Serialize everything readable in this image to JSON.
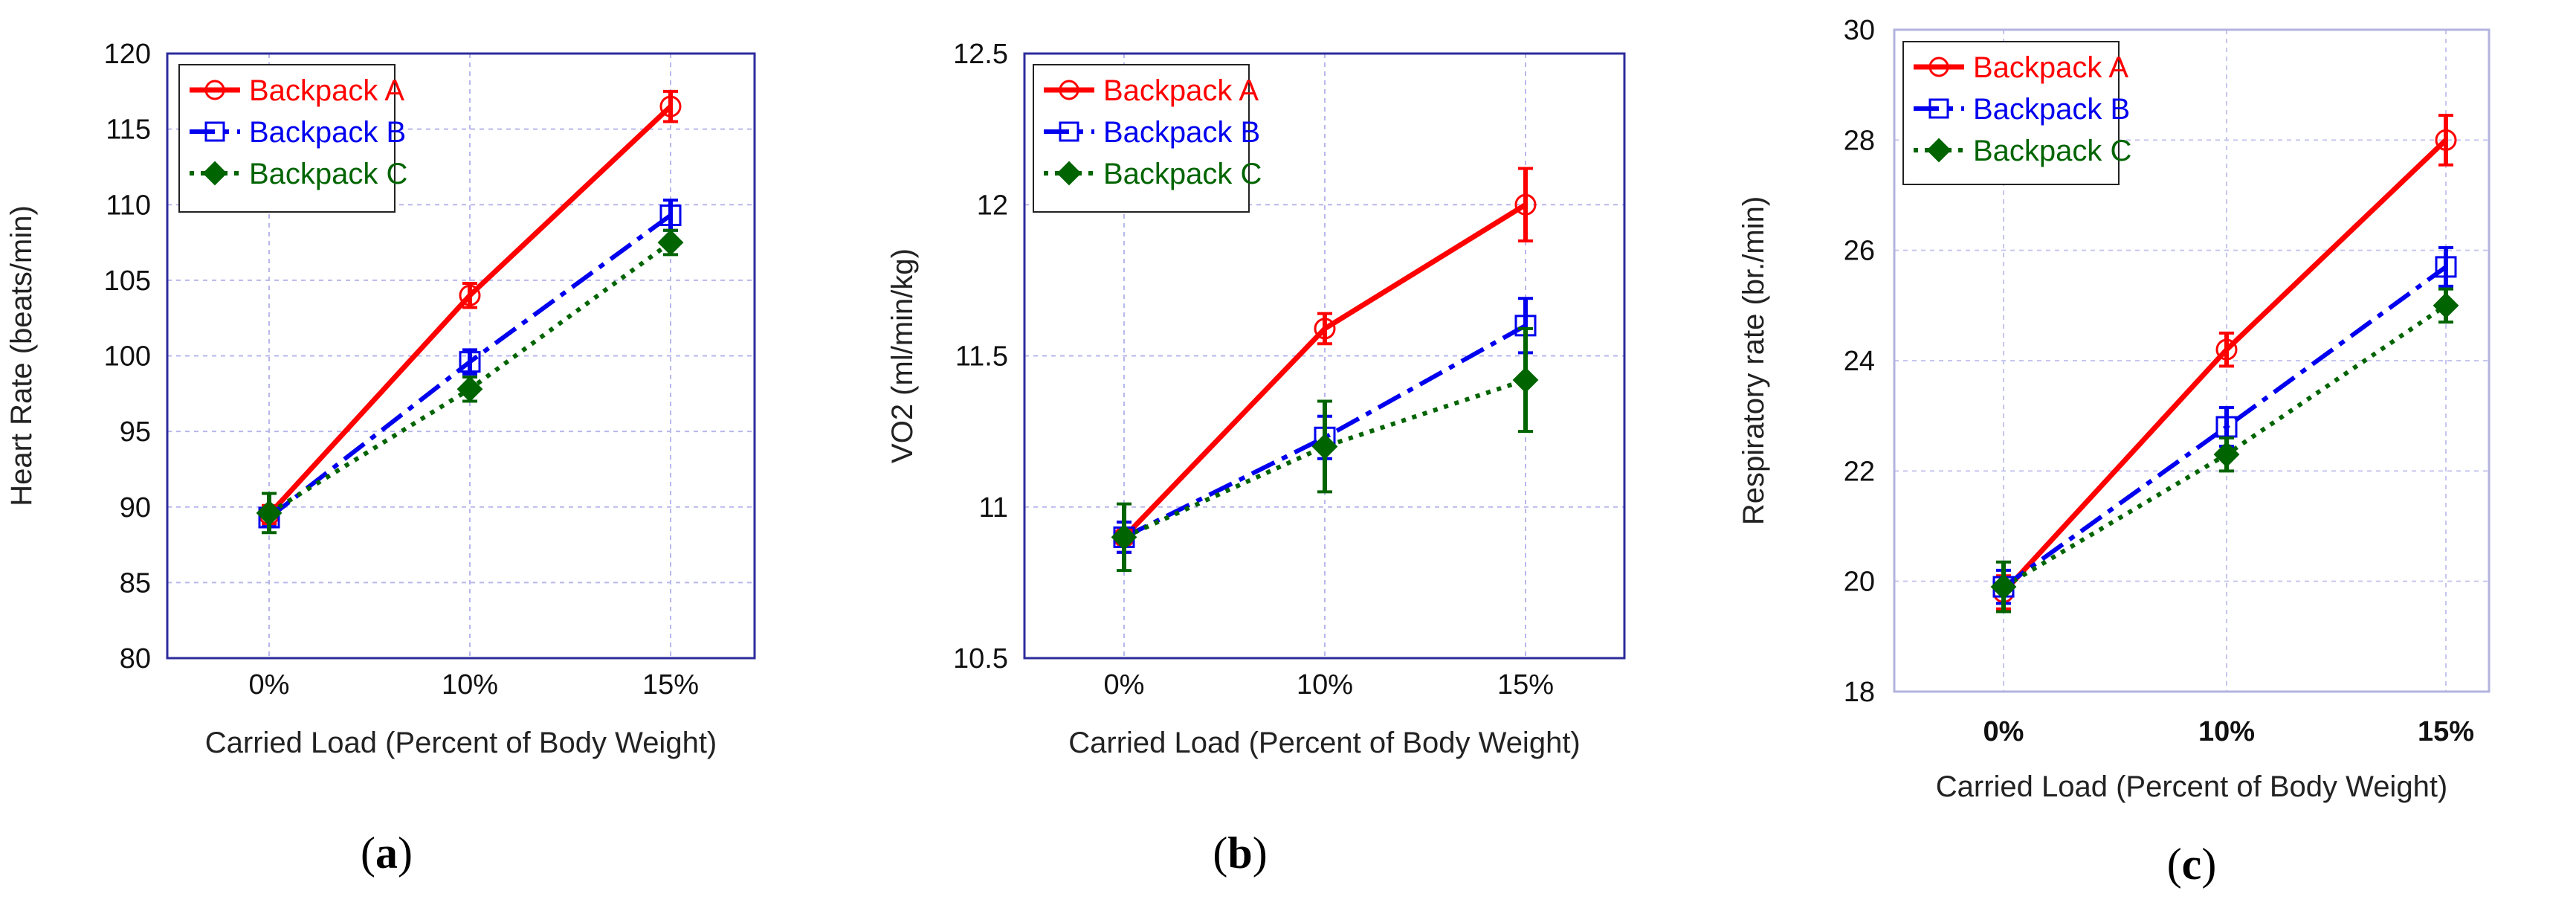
{
  "chart_data": [
    {
      "type": "line",
      "panel": "a",
      "caption_letter": "a",
      "title": "",
      "xlabel": "Carried Load (Percent of Body Weight)",
      "ylabel": "Heart Rate (beats/min)",
      "categories": [
        "0%",
        "10%",
        "15%"
      ],
      "ylim": [
        80,
        120
      ],
      "yticks": [
        80,
        85,
        90,
        95,
        100,
        105,
        110,
        115,
        120
      ],
      "ytick_labels": [
        "80",
        "85",
        "90",
        "95",
        "100",
        "105",
        "110",
        "115",
        "120"
      ],
      "grid": true,
      "legend": "top-left",
      "series": [
        {
          "name": "Backpack A",
          "color": "#ff0000",
          "marker": "circle",
          "line": "solid",
          "values": [
            89.5,
            104.0,
            116.5
          ],
          "errors": [
            0.6,
            0.8,
            1.0
          ]
        },
        {
          "name": "Backpack B",
          "color": "#0000ee",
          "marker": "square",
          "line": "dashdot",
          "values": [
            89.3,
            99.6,
            109.3
          ],
          "errors": [
            0.6,
            0.8,
            1.0
          ]
        },
        {
          "name": "Backpack C",
          "color": "#006400",
          "marker": "diamond",
          "line": "dotted",
          "values": [
            89.6,
            97.8,
            107.5
          ],
          "errors": [
            1.3,
            0.8,
            0.8
          ]
        }
      ]
    },
    {
      "type": "line",
      "panel": "b",
      "caption_letter": "b",
      "title": "",
      "xlabel": "Carried Load (Percent of Body Weight)",
      "ylabel": "VO2 (ml/min/kg)",
      "categories": [
        "0%",
        "10%",
        "15%"
      ],
      "ylim": [
        10.5,
        12.5
      ],
      "yticks": [
        10.5,
        11,
        11.5,
        12,
        12.5
      ],
      "ytick_labels": [
        "10.5",
        "11",
        "11.5",
        "12",
        "12.5"
      ],
      "grid": true,
      "legend": "top-left",
      "series": [
        {
          "name": "Backpack A",
          "color": "#ff0000",
          "marker": "circle",
          "line": "solid",
          "values": [
            10.9,
            11.59,
            12.0
          ],
          "errors": [
            0.05,
            0.05,
            0.12
          ]
        },
        {
          "name": "Backpack B",
          "color": "#0000ee",
          "marker": "square",
          "line": "dashdot",
          "values": [
            10.9,
            11.23,
            11.6
          ],
          "errors": [
            0.05,
            0.07,
            0.09
          ]
        },
        {
          "name": "Backpack C",
          "color": "#006400",
          "marker": "diamond",
          "line": "dotted",
          "values": [
            10.9,
            11.2,
            11.42
          ],
          "errors": [
            0.11,
            0.15,
            0.17
          ]
        }
      ]
    },
    {
      "type": "line",
      "panel": "c",
      "caption_letter": "c",
      "title": "",
      "xlabel": "Carried Load (Percent of Body Weight)",
      "ylabel": "Respiratory rate (br./min)",
      "categories": [
        "0%",
        "10%",
        "15%"
      ],
      "ylim": [
        18,
        30
      ],
      "yticks": [
        18,
        20,
        22,
        24,
        26,
        28,
        30
      ],
      "ytick_labels": [
        "18",
        "20",
        "22",
        "24",
        "26",
        "28",
        "30"
      ],
      "grid": true,
      "legend": "top-left",
      "series": [
        {
          "name": "Backpack A",
          "color": "#ff0000",
          "marker": "circle",
          "line": "solid",
          "values": [
            19.8,
            24.2,
            28.0
          ],
          "errors": [
            0.3,
            0.3,
            0.45
          ]
        },
        {
          "name": "Backpack B",
          "color": "#0000ee",
          "marker": "square",
          "line": "dashdot",
          "values": [
            19.9,
            22.8,
            25.7
          ],
          "errors": [
            0.3,
            0.35,
            0.35
          ]
        },
        {
          "name": "Backpack C",
          "color": "#006400",
          "marker": "diamond",
          "line": "dotted",
          "values": [
            19.9,
            22.3,
            25.0
          ],
          "errors": [
            0.45,
            0.3,
            0.3
          ]
        }
      ]
    }
  ]
}
